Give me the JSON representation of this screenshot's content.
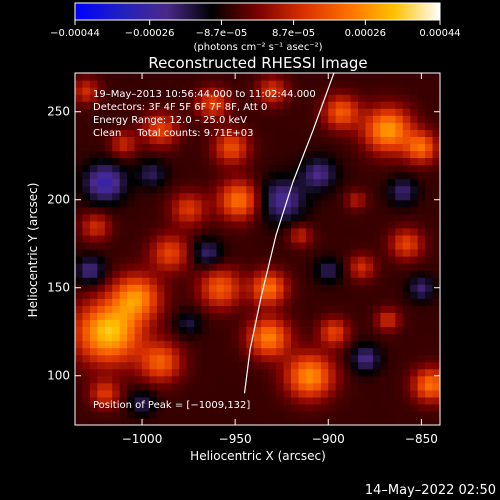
{
  "chart_data": {
    "type": "heatmap",
    "title": "Reconstructed RHESSI Image",
    "xlabel": "Heliocentric X (arcsec)",
    "ylabel": "Heliocentric Y (arcsec)",
    "xlim": [
      -1036,
      -840
    ],
    "ylim": [
      72,
      272
    ],
    "x_ticks": [
      -1000,
      -950,
      -900,
      -850
    ],
    "y_ticks": [
      100,
      150,
      200,
      250
    ],
    "x_tick_labels": [
      "−1000",
      "−950",
      "−900",
      "−850"
    ],
    "y_tick_labels": [
      "100",
      "150",
      "200",
      "250"
    ],
    "colorbar": {
      "ticks": [
        -0.00044,
        -0.00026,
        -8.7e-05,
        8.7e-05,
        0.00026,
        0.00044
      ],
      "tick_labels": [
        "−0.00044",
        "−0.00026",
        "−8.7e−05",
        "8.7e−05",
        "0.00026",
        "0.00044"
      ],
      "units": "(photons cm⁻² s⁻¹ asec⁻²)",
      "colormap": [
        "#0000ff",
        "#2020c0",
        "#4a2a8a",
        "#000000",
        "#7a0000",
        "#d83000",
        "#ff7000",
        "#ffc000",
        "#ffffff"
      ]
    },
    "annotations": [
      "19–May–2013 10:56:44.000 to 11:02:44.000",
      "Detectors: 3F 4F 5F 6F 7F 8F, Att 0",
      "Energy Range: 12.0 – 25.0 keV",
      "Clean     Total counts: 9.71E+03"
    ],
    "peak_label": "Position of Peak = [−1009,132]",
    "limb_curve": [
      [
        -945,
        90
      ],
      [
        -942,
        115
      ],
      [
        -936,
        145
      ],
      [
        -928,
        180
      ],
      [
        -919,
        210
      ],
      [
        -908,
        240
      ],
      [
        -897,
        272
      ]
    ],
    "hot_regions": [
      {
        "x": -1018,
        "y": 125,
        "r": 22,
        "v": 0.0004
      },
      {
        "x": -1003,
        "y": 145,
        "r": 16,
        "v": 0.0003
      },
      {
        "x": -990,
        "y": 108,
        "r": 14,
        "v": 0.00024
      },
      {
        "x": -985,
        "y": 170,
        "r": 13,
        "v": 0.0002
      },
      {
        "x": -975,
        "y": 195,
        "r": 12,
        "v": 0.00018
      },
      {
        "x": -958,
        "y": 150,
        "r": 14,
        "v": 0.00024
      },
      {
        "x": -948,
        "y": 200,
        "r": 14,
        "v": 0.00028
      },
      {
        "x": -952,
        "y": 230,
        "r": 12,
        "v": 0.00022
      },
      {
        "x": -932,
        "y": 150,
        "r": 12,
        "v": 0.00028
      },
      {
        "x": -932,
        "y": 122,
        "r": 14,
        "v": 0.0003
      },
      {
        "x": -910,
        "y": 100,
        "r": 16,
        "v": 0.00032
      },
      {
        "x": -897,
        "y": 125,
        "r": 10,
        "v": 0.0002
      },
      {
        "x": -893,
        "y": 250,
        "r": 12,
        "v": 0.00024
      },
      {
        "x": -868,
        "y": 240,
        "r": 16,
        "v": 0.00034
      },
      {
        "x": -850,
        "y": 230,
        "r": 11,
        "v": 0.00026
      },
      {
        "x": -858,
        "y": 175,
        "r": 11,
        "v": 0.0002
      },
      {
        "x": -882,
        "y": 162,
        "r": 9,
        "v": 0.00016
      },
      {
        "x": -845,
        "y": 95,
        "r": 12,
        "v": 0.00028
      },
      {
        "x": -868,
        "y": 132,
        "r": 8,
        "v": 0.00016
      },
      {
        "x": -990,
        "y": 240,
        "r": 12,
        "v": 0.0002
      },
      {
        "x": -962,
        "y": 255,
        "r": 11,
        "v": 0.0002
      },
      {
        "x": -1025,
        "y": 185,
        "r": 10,
        "v": 0.00016
      },
      {
        "x": -1010,
        "y": 232,
        "r": 9,
        "v": 0.00015
      },
      {
        "x": -915,
        "y": 180,
        "r": 8,
        "v": 0.00014
      },
      {
        "x": -1030,
        "y": 262,
        "r": 9,
        "v": 0.00016
      },
      {
        "x": -1020,
        "y": 90,
        "r": 10,
        "v": 0.00018
      },
      {
        "x": -930,
        "y": 262,
        "r": 10,
        "v": 0.00018
      },
      {
        "x": -885,
        "y": 200,
        "r": 7,
        "v": 0.00012
      }
    ],
    "cold_regions": [
      {
        "x": -1020,
        "y": 210,
        "r": 14,
        "v": -0.00022
      },
      {
        "x": -1028,
        "y": 160,
        "r": 10,
        "v": -0.00016
      },
      {
        "x": -995,
        "y": 215,
        "r": 10,
        "v": -0.00012
      },
      {
        "x": -965,
        "y": 170,
        "r": 10,
        "v": -0.00014
      },
      {
        "x": -925,
        "y": 200,
        "r": 16,
        "v": -0.00018
      },
      {
        "x": -905,
        "y": 215,
        "r": 12,
        "v": -0.00016
      },
      {
        "x": -880,
        "y": 110,
        "r": 10,
        "v": -0.00016
      },
      {
        "x": -860,
        "y": 205,
        "r": 10,
        "v": -0.00014
      },
      {
        "x": -900,
        "y": 160,
        "r": 9,
        "v": -0.00012
      },
      {
        "x": -1000,
        "y": 85,
        "r": 9,
        "v": -0.00012
      },
      {
        "x": -975,
        "y": 130,
        "r": 9,
        "v": -0.0001
      },
      {
        "x": -850,
        "y": 150,
        "r": 9,
        "v": -0.00014
      }
    ]
  },
  "footer": {
    "timestamp": "14–May–2022 02:50"
  }
}
